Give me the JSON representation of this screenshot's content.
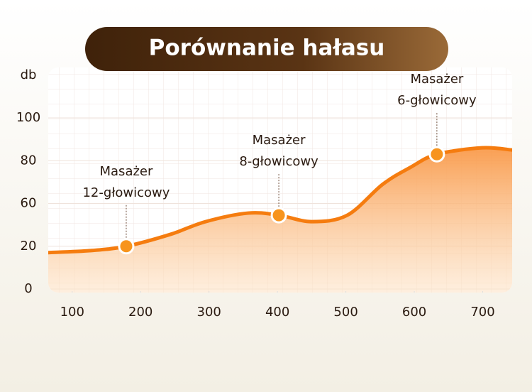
{
  "chart_data": {
    "type": "area-line",
    "title": "Porównanie hałasu",
    "y_label": "db",
    "x": [
      65,
      129,
      179,
      243,
      295,
      357,
      402,
      450,
      502,
      554,
      595,
      633,
      699,
      743
    ],
    "series": [
      {
        "color": "#f57c0f",
        "values": [
          17,
          18,
          20,
          31,
          43,
          51,
          49,
          43,
          49,
          69,
          77,
          83,
          86,
          85
        ]
      }
    ],
    "xlim": [
      65,
      743
    ],
    "xticks": [
      100,
      200,
      300,
      400,
      500,
      600,
      700
    ],
    "yticks": [
      0,
      20,
      60,
      80,
      100
    ],
    "annotations": [
      {
        "x": 179,
        "y": 20,
        "label": [
          "Masażer",
          "12-głowicowy"
        ]
      },
      {
        "x": 402,
        "y": 49,
        "label": [
          "Masażer",
          "8-głowicowy"
        ]
      },
      {
        "x": 633,
        "y": 83,
        "label": [
          "Masażer",
          "6-głowicowy"
        ]
      }
    ],
    "grid": true
  }
}
